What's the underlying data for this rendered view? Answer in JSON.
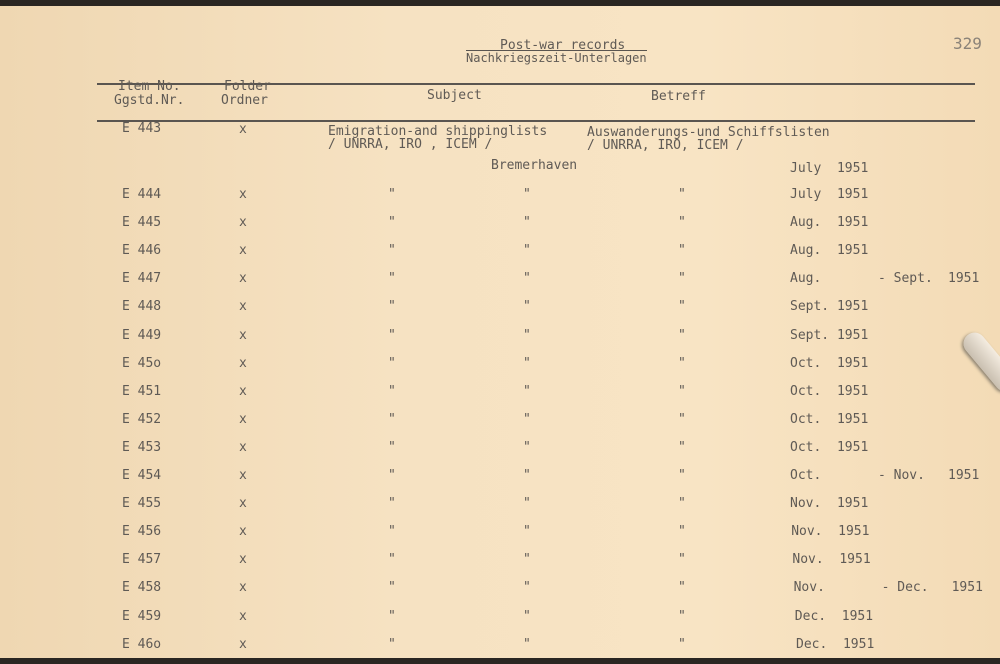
{
  "page_number": "329",
  "title": "Post-war records",
  "subtitle": "Nachkriegszeit-Unterlagen",
  "headers": {
    "item_en": "Item No.",
    "item_de": "Ggstd.Nr.",
    "folder_en": "Folder",
    "folder_de": "Ordner",
    "subject": "Subject",
    "betreff": "Betreff"
  },
  "first": {
    "item": "E 443",
    "folder": "x",
    "subject_1": "Emigration-and shippinglists",
    "subject_2": "/ UNRRA, IRO , ICEM /",
    "betreff_1": "Auswanderungs-und Schiffslisten",
    "betreff_2": "/ UNRRA, IRO, ICEM /",
    "place": "Bremerhaven",
    "date": "July  1951"
  },
  "ditto": "\"",
  "rows": [
    {
      "item": "E 444",
      "folder": "x",
      "date": "July  1951",
      "range": "",
      "year": ""
    },
    {
      "item": "E 445",
      "folder": "x",
      "date": "Aug.  1951",
      "range": "",
      "year": ""
    },
    {
      "item": "E 446",
      "folder": "x",
      "date": "Aug.  1951",
      "range": "",
      "year": ""
    },
    {
      "item": "E 447",
      "folder": "x",
      "date": "Aug.",
      "range": "- Sept.",
      "year": "1951"
    },
    {
      "item": "E 448",
      "folder": "x",
      "date": "Sept. 1951",
      "range": "",
      "year": ""
    },
    {
      "item": "E 449",
      "folder": "x",
      "date": "Sept. 1951",
      "range": "",
      "year": ""
    },
    {
      "item": "E 45o",
      "folder": "x",
      "date": "Oct.  1951",
      "range": "",
      "year": ""
    },
    {
      "item": "E 451",
      "folder": "x",
      "date": "Oct.  1951",
      "range": "",
      "year": ""
    },
    {
      "item": "E 452",
      "folder": "x",
      "date": "Oct.  1951",
      "range": "",
      "year": ""
    },
    {
      "item": "E 453",
      "folder": "x",
      "date": "Oct.  1951",
      "range": "",
      "year": ""
    },
    {
      "item": "E 454",
      "folder": "x",
      "date": "Oct.",
      "range": "- Nov.",
      "year": "1951"
    },
    {
      "item": "E 455",
      "folder": "x",
      "date": "Nov.  1951",
      "range": "",
      "year": ""
    },
    {
      "item": "E 456",
      "folder": "x",
      "date": "Nov.  1951",
      "range": "",
      "year": ""
    },
    {
      "item": "E 457",
      "folder": "x",
      "date": "Nov.  1951",
      "range": "",
      "year": ""
    },
    {
      "item": "E 458",
      "folder": "x",
      "date": "Nov.",
      "range": "- Dec.",
      "year": "1951"
    },
    {
      "item": "E 459",
      "folder": "x",
      "date": "Dec.  1951",
      "range": "",
      "year": ""
    },
    {
      "item": "E 46o",
      "folder": "x",
      "date": "Dec.  1951",
      "range": "",
      "year": ""
    }
  ]
}
